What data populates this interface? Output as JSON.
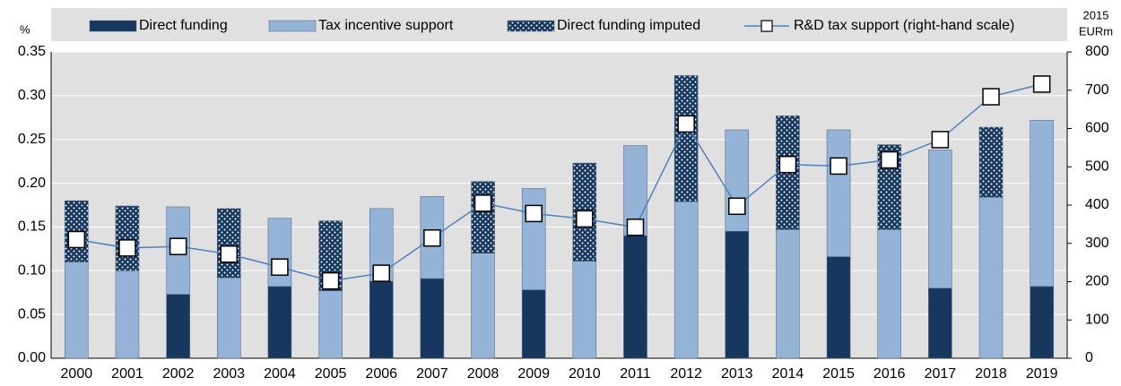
{
  "chart_data": {
    "type": "bar",
    "y_label": "%",
    "y2_label": [
      "2015",
      "EURm"
    ],
    "categories": [
      "2000",
      "2001",
      "2002",
      "2003",
      "2004",
      "2005",
      "2006",
      "2007",
      "2008",
      "2009",
      "2010",
      "2011",
      "2012",
      "2013",
      "2014",
      "2015",
      "2016",
      "2017",
      "2018",
      "2019"
    ],
    "series": [
      {
        "name": "Direct funding",
        "color": "#17375e",
        "values": [
          null,
          null,
          0.073,
          null,
          0.082,
          null,
          0.088,
          0.091,
          null,
          0.078,
          null,
          0.14,
          null,
          0.145,
          null,
          0.116,
          null,
          0.08,
          null,
          0.082
        ]
      },
      {
        "name": "Tax incentive support",
        "color": "#95b3d7",
        "values": [
          0.11,
          0.1,
          0.1,
          0.092,
          0.078,
          0.077,
          0.083,
          0.094,
          0.12,
          0.116,
          0.111,
          0.103,
          0.179,
          0.116,
          0.147,
          0.145,
          0.147,
          0.158,
          0.184,
          0.19
        ]
      },
      {
        "name": "Direct funding imputed",
        "color": "#17375e",
        "pattern": "dots",
        "values": [
          0.07,
          0.074,
          null,
          0.079,
          null,
          0.08,
          null,
          null,
          0.082,
          null,
          0.112,
          null,
          0.144,
          null,
          0.13,
          null,
          0.097,
          null,
          0.08,
          null
        ]
      },
      {
        "name": "R&D tax support (right-hand scale)",
        "type": "line",
        "axis": "y2",
        "color": "#4f81bd",
        "values": [
          310,
          288,
          292,
          272,
          238,
          202,
          222,
          314,
          405,
          378,
          364,
          342,
          612,
          397,
          506,
          502,
          518,
          571,
          683,
          716
        ]
      }
    ],
    "ylim": [
      0,
      0.35
    ],
    "yticks": [
      {
        "value": 0,
        "label": "0.00"
      },
      0.05,
      {
        "value": 0.1,
        "label": "0.10"
      },
      0.15,
      {
        "value": 0.2,
        "label": "0.20"
      },
      0.25,
      {
        "value": 0.3,
        "label": "0.30"
      },
      0.35
    ],
    "y2lim": [
      0,
      800
    ],
    "y2ticks": [
      0,
      100,
      200,
      300,
      400,
      500,
      600,
      700,
      800
    ],
    "grid": true
  }
}
